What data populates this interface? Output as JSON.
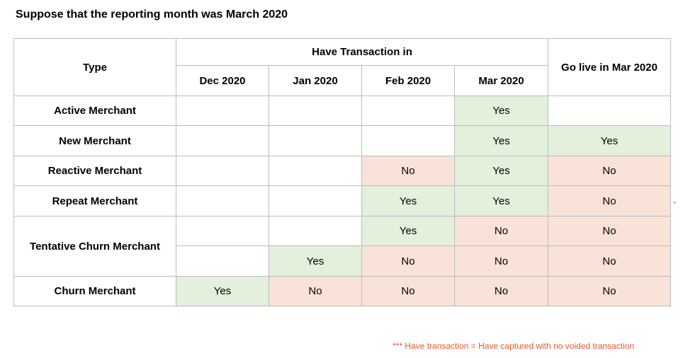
{
  "title": "Suppose that the reporting month was March 2020",
  "table": {
    "type_header": "Type",
    "group_header": "Have Transaction in",
    "month_headers": [
      "Dec 2020",
      "Jan 2020",
      "Feb 2020",
      "Mar 2020"
    ],
    "golive_header": "Go live in Mar 2020",
    "rows": [
      {
        "type": "Active Merchant",
        "cells": [
          "",
          "",
          "",
          "Yes",
          ""
        ]
      },
      {
        "type": "New Merchant",
        "cells": [
          "",
          "",
          "",
          "Yes",
          "Yes"
        ]
      },
      {
        "type": "Reactive Merchant",
        "cells": [
          "",
          "",
          "No",
          "Yes",
          "No"
        ]
      },
      {
        "type": "Repeat Merchant",
        "cells": [
          "",
          "",
          "Yes",
          "Yes",
          "No"
        ]
      },
      {
        "type": "Tentative Churn Merchant",
        "cells": [
          "",
          "",
          "Yes",
          "No",
          "No"
        ]
      },
      {
        "type": "",
        "cells": [
          "",
          "Yes",
          "No",
          "No",
          "No"
        ]
      },
      {
        "type": "Churn Merchant",
        "cells": [
          "Yes",
          "No",
          "No",
          "No",
          "No"
        ]
      }
    ]
  },
  "colors": {
    "yes_fill": "#e2f0dc",
    "no_fill": "#f9e2d8",
    "note_text": "#e8572c"
  },
  "footnote": "*** Have transaction = Have captured with no voided transaction",
  "stray_mark": "`"
}
